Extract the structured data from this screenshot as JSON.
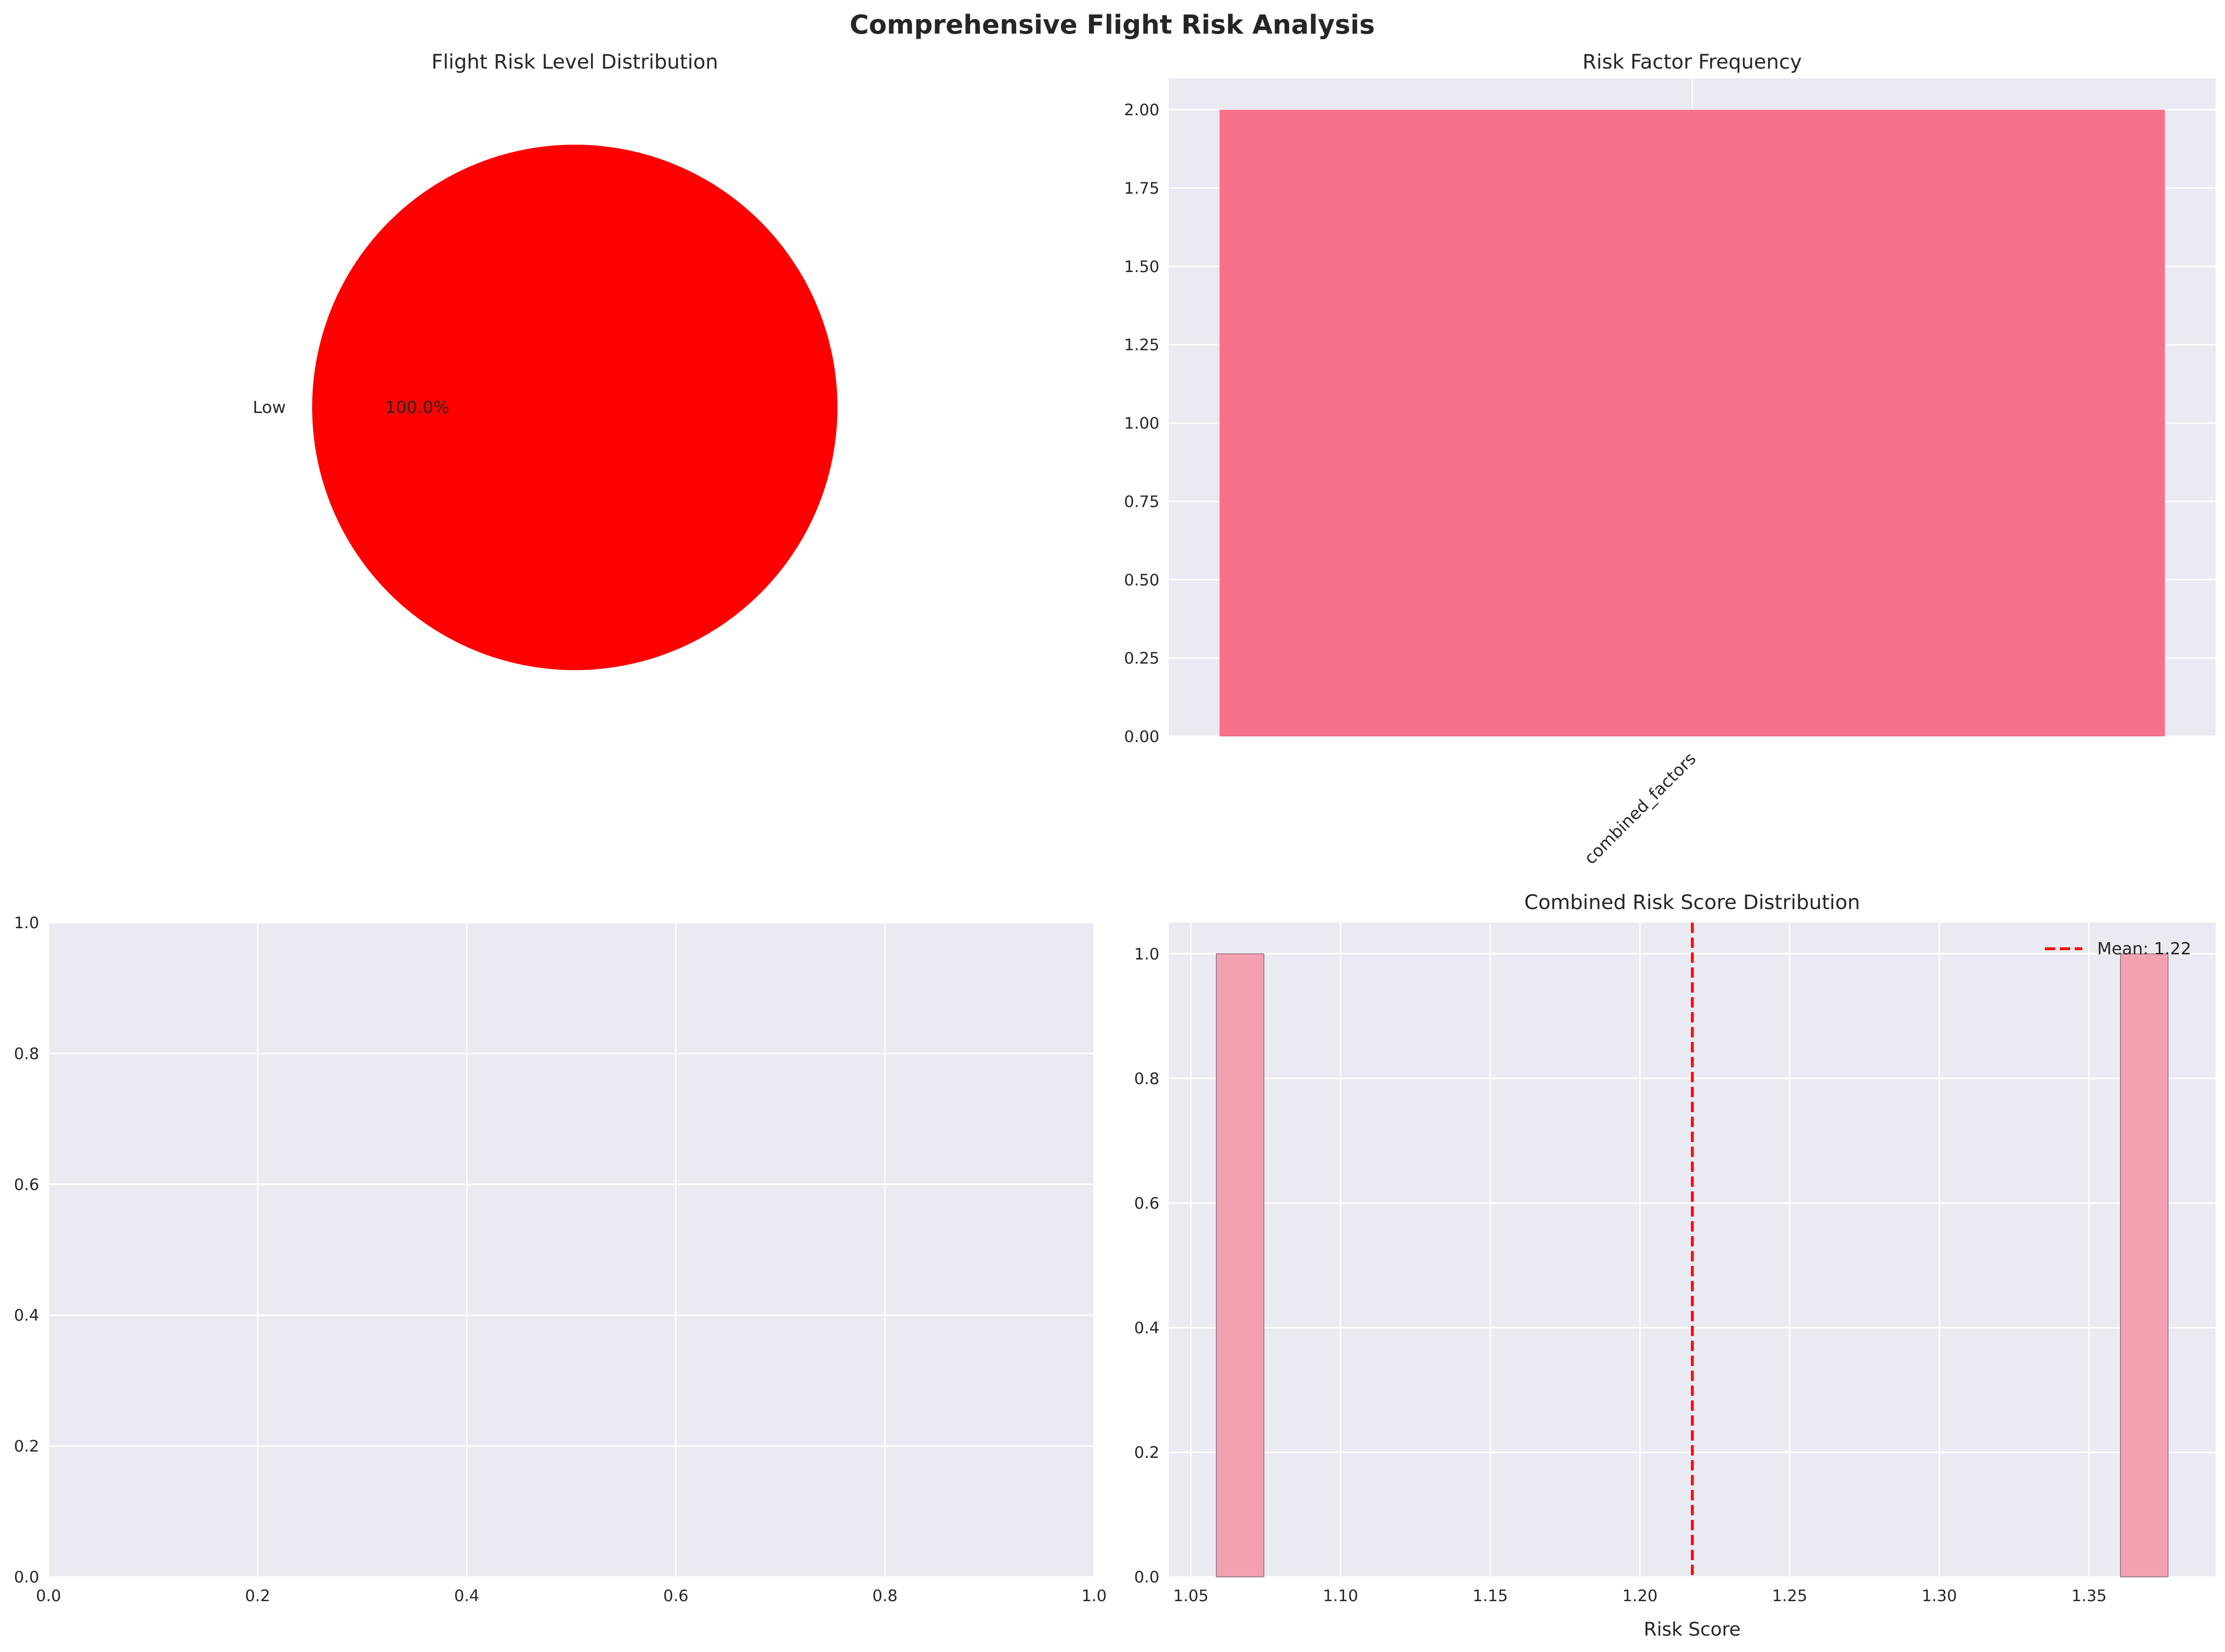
{
  "figure": {
    "title": "Comprehensive Flight Risk Analysis"
  },
  "colors": {
    "panel_bg": "#EAEAF2",
    "grid": "#FFFFFF",
    "pie_low": "#FF0000",
    "bar": "#F67189",
    "hist": "#F3A0B1",
    "mean_line": "#FF0000",
    "text": "#262626"
  },
  "chart_data": [
    {
      "type": "pie",
      "title": "Flight Risk Level Distribution",
      "labels": [
        "Low"
      ],
      "values": [
        100
      ],
      "autopct": [
        "100.0%"
      ]
    },
    {
      "type": "bar",
      "title": "Risk Factor Frequency",
      "categories": [
        "combined_factors"
      ],
      "values": [
        2
      ],
      "ylim": [
        0,
        2.1
      ],
      "yticks": [
        "0.00",
        "0.25",
        "0.50",
        "0.75",
        "1.00",
        "1.25",
        "1.50",
        "1.75",
        "2.00"
      ],
      "xtick_rotation": 45,
      "grid": true
    },
    {
      "type": "scatter",
      "title": "",
      "xlim": [
        0,
        1
      ],
      "ylim": [
        0,
        1
      ],
      "xticks": [
        "0.0",
        "0.2",
        "0.4",
        "0.6",
        "0.8",
        "1.0"
      ],
      "yticks": [
        "0.0",
        "0.2",
        "0.4",
        "0.6",
        "0.8",
        "1.0"
      ],
      "points": [],
      "grid": true
    },
    {
      "type": "bar",
      "subtype": "histogram",
      "title": "Combined Risk Score Distribution",
      "xlabel": "Risk Score",
      "ylabel": "",
      "bins": [
        {
          "x0": 1.0585,
          "x1": 1.0744,
          "count": 1
        },
        {
          "x0": 1.3605,
          "x1": 1.3764,
          "count": 1
        }
      ],
      "xlim": [
        1.0426,
        1.3923
      ],
      "ylim": [
        0,
        1.05
      ],
      "xticks": [
        "1.05",
        "1.10",
        "1.15",
        "1.20",
        "1.25",
        "1.30",
        "1.35"
      ],
      "yticks": [
        "0.0",
        "0.2",
        "0.4",
        "0.6",
        "0.8",
        "1.0"
      ],
      "mean": 1.2175,
      "legend": [
        "Mean: 1.22"
      ],
      "legend_position": "top-right",
      "grid": true
    }
  ]
}
